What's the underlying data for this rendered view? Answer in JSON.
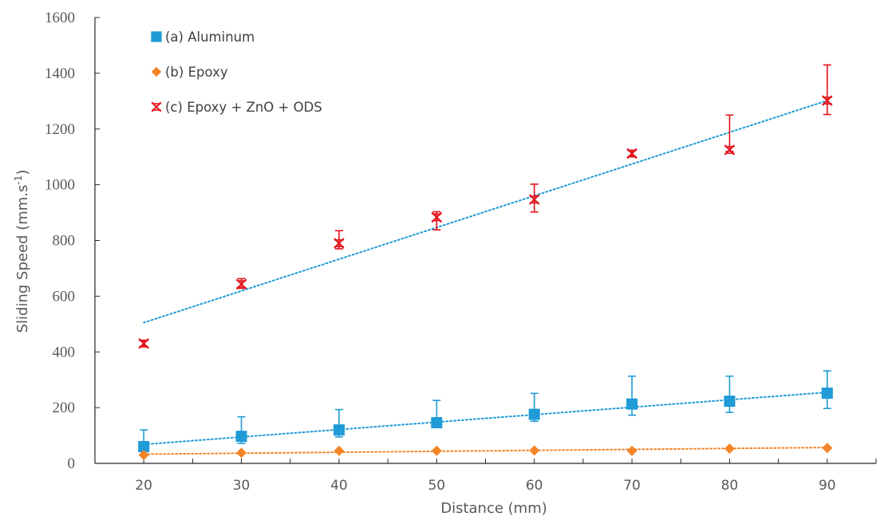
{
  "chart_data": {
    "type": "scatter",
    "xlabel": "Distance (mm)",
    "ylabel_main": "Sliding Speed (mm.s",
    "ylabel_sup": "-1",
    "ylabel_end": ")",
    "xlim": [
      15,
      95
    ],
    "ylim": [
      0,
      1600
    ],
    "xticks": [
      20,
      30,
      40,
      50,
      60,
      70,
      80,
      90
    ],
    "yticks": [
      0,
      200,
      400,
      600,
      800,
      1000,
      1200,
      1400,
      1600
    ],
    "legend_position": "top-left",
    "trendlines": "linear, dotted",
    "series": [
      {
        "name": "(a) Aluminum",
        "marker": "square",
        "color": "#1F9BD7",
        "trend_color": "#1F9BD7",
        "x": [
          20,
          30,
          40,
          50,
          60,
          70,
          80,
          90
        ],
        "y": [
          60,
          97,
          120,
          146,
          176,
          213,
          223,
          252
        ],
        "err_low": [
          5,
          25,
          25,
          15,
          25,
          40,
          40,
          55
        ],
        "err_high": [
          60,
          70,
          73,
          80,
          75,
          100,
          90,
          80
        ],
        "trend": [
          [
            20,
            68
          ],
          [
            90,
            255
          ]
        ]
      },
      {
        "name": "(b) Epoxy",
        "marker": "diamond",
        "color": "#F58426",
        "trend_color": "#F58426",
        "x": [
          20,
          30,
          40,
          50,
          60,
          70,
          80,
          90
        ],
        "y": [
          30,
          38,
          45,
          45,
          46,
          45,
          53,
          55
        ],
        "err_low": [
          0,
          0,
          0,
          0,
          0,
          0,
          0,
          0
        ],
        "err_high": [
          0,
          0,
          0,
          0,
          0,
          0,
          0,
          0
        ],
        "trend": [
          [
            20,
            33
          ],
          [
            90,
            57
          ]
        ]
      },
      {
        "name": "(c) Epoxy + ZnO + ODS",
        "marker": "asterisk",
        "color": "#E3131B",
        "trend_color": "#1F9BD7",
        "x": [
          20,
          30,
          40,
          50,
          60,
          70,
          80,
          90
        ],
        "y": [
          430,
          643,
          790,
          883,
          947,
          1112,
          1125,
          1302
        ],
        "err_low": [
          10,
          15,
          20,
          45,
          45,
          10,
          5,
          50
        ],
        "err_high": [
          10,
          20,
          45,
          20,
          55,
          10,
          125,
          128
        ],
        "trend": [
          [
            20,
            505
          ],
          [
            90,
            1302
          ]
        ]
      }
    ]
  }
}
